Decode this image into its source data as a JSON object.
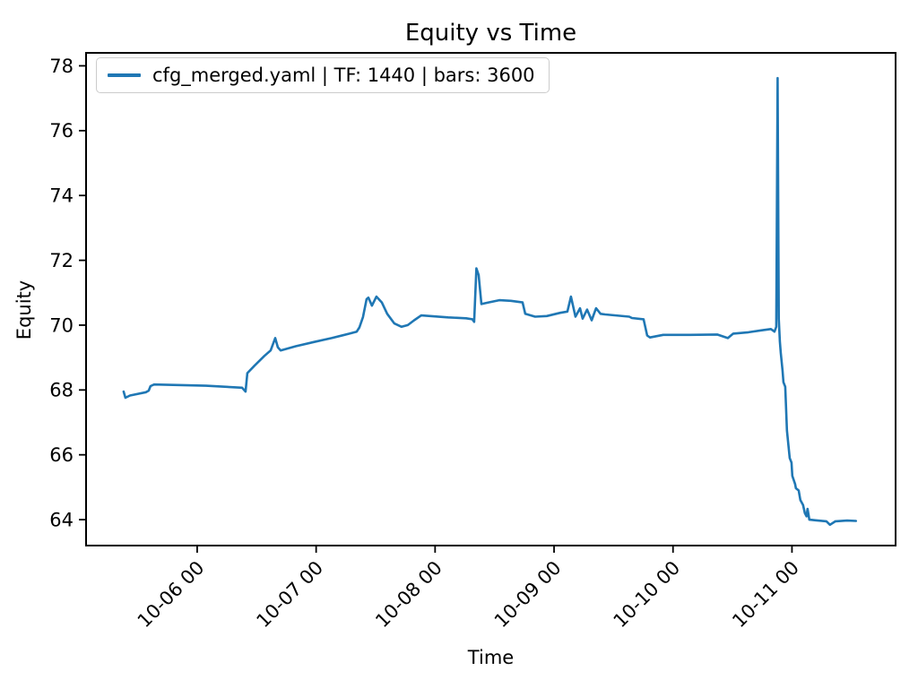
{
  "title": "Equity vs Time",
  "xlabel": "Time",
  "ylabel": "Equity",
  "legend": {
    "label": "cfg_merged.yaml | TF: 1440 | bars: 3600",
    "color": "#1f77b4",
    "position": "upper-left"
  },
  "chart_data": {
    "type": "line",
    "title": "Equity vs Time",
    "xlabel": "Time",
    "ylabel": "Equity",
    "grid": false,
    "line_color": "#1f77b4",
    "xlim": [
      -0.934,
      5.871
    ],
    "ylim": [
      63.2,
      78.4
    ],
    "x_ticks": [
      {
        "pos": 0,
        "label": "10-06 00"
      },
      {
        "pos": 1,
        "label": "10-07 00"
      },
      {
        "pos": 2,
        "label": "10-08 00"
      },
      {
        "pos": 3,
        "label": "10-09 00"
      },
      {
        "pos": 4,
        "label": "10-10 00"
      },
      {
        "pos": 5,
        "label": "10-11 00"
      }
    ],
    "y_ticks": [
      64,
      66,
      68,
      70,
      72,
      74,
      76,
      78
    ],
    "series": [
      {
        "name": "cfg_merged.yaml | TF: 1440 | bars: 3600",
        "color": "#1f77b4",
        "points": [
          [
            -0.618,
            67.95
          ],
          [
            -0.603,
            67.76
          ],
          [
            -0.565,
            67.83
          ],
          [
            -0.43,
            67.93
          ],
          [
            -0.407,
            67.98
          ],
          [
            -0.392,
            68.12
          ],
          [
            -0.362,
            68.17
          ],
          [
            0.075,
            68.13
          ],
          [
            0.377,
            68.07
          ],
          [
            0.407,
            67.95
          ],
          [
            0.422,
            68.52
          ],
          [
            0.482,
            68.75
          ],
          [
            0.565,
            69.05
          ],
          [
            0.618,
            69.22
          ],
          [
            0.656,
            69.6
          ],
          [
            0.678,
            69.32
          ],
          [
            0.701,
            69.22
          ],
          [
            0.829,
            69.35
          ],
          [
            0.98,
            69.48
          ],
          [
            1.13,
            69.6
          ],
          [
            1.281,
            69.74
          ],
          [
            1.341,
            69.8
          ],
          [
            1.364,
            69.93
          ],
          [
            1.394,
            70.25
          ],
          [
            1.424,
            70.8
          ],
          [
            1.439,
            70.85
          ],
          [
            1.469,
            70.6
          ],
          [
            1.507,
            70.88
          ],
          [
            1.552,
            70.7
          ],
          [
            1.597,
            70.35
          ],
          [
            1.658,
            70.05
          ],
          [
            1.718,
            69.95
          ],
          [
            1.771,
            70.0
          ],
          [
            1.824,
            70.15
          ],
          [
            1.884,
            70.3
          ],
          [
            1.959,
            70.28
          ],
          [
            2.11,
            70.24
          ],
          [
            2.261,
            70.21
          ],
          [
            2.313,
            70.18
          ],
          [
            2.328,
            70.1
          ],
          [
            2.347,
            71.75
          ],
          [
            2.366,
            71.55
          ],
          [
            2.389,
            70.65
          ],
          [
            2.449,
            70.7
          ],
          [
            2.539,
            70.77
          ],
          [
            2.637,
            70.75
          ],
          [
            2.735,
            70.7
          ],
          [
            2.758,
            70.35
          ],
          [
            2.841,
            70.26
          ],
          [
            2.939,
            70.28
          ],
          [
            3.052,
            70.38
          ],
          [
            3.112,
            70.42
          ],
          [
            3.142,
            70.88
          ],
          [
            3.18,
            70.26
          ],
          [
            3.218,
            70.52
          ],
          [
            3.24,
            70.2
          ],
          [
            3.278,
            70.48
          ],
          [
            3.316,
            70.15
          ],
          [
            3.353,
            70.52
          ],
          [
            3.391,
            70.35
          ],
          [
            3.429,
            70.33
          ],
          [
            3.632,
            70.26
          ],
          [
            3.655,
            70.22
          ],
          [
            3.753,
            70.18
          ],
          [
            3.783,
            69.68
          ],
          [
            3.806,
            69.62
          ],
          [
            3.918,
            69.7
          ],
          [
            4.145,
            69.7
          ],
          [
            4.371,
            69.71
          ],
          [
            4.461,
            69.6
          ],
          [
            4.506,
            69.74
          ],
          [
            4.634,
            69.78
          ],
          [
            4.747,
            69.84
          ],
          [
            4.823,
            69.88
          ],
          [
            4.853,
            69.8
          ],
          [
            4.868,
            69.95
          ],
          [
            4.879,
            77.62
          ],
          [
            4.889,
            70.2
          ],
          [
            4.898,
            69.5
          ],
          [
            4.906,
            69.15
          ],
          [
            4.921,
            68.6
          ],
          [
            4.928,
            68.24
          ],
          [
            4.943,
            68.1
          ],
          [
            4.951,
            67.4
          ],
          [
            4.958,
            66.75
          ],
          [
            4.973,
            66.2
          ],
          [
            4.981,
            65.9
          ],
          [
            4.996,
            65.76
          ],
          [
            5.003,
            65.35
          ],
          [
            5.026,
            65.1
          ],
          [
            5.033,
            64.97
          ],
          [
            5.056,
            64.9
          ],
          [
            5.071,
            64.6
          ],
          [
            5.093,
            64.45
          ],
          [
            5.108,
            64.2
          ],
          [
            5.123,
            64.1
          ],
          [
            5.131,
            64.33
          ],
          [
            5.146,
            64.0
          ],
          [
            5.199,
            63.98
          ],
          [
            5.289,
            63.95
          ],
          [
            5.319,
            63.84
          ],
          [
            5.365,
            63.95
          ],
          [
            5.463,
            63.97
          ],
          [
            5.538,
            63.96
          ]
        ]
      }
    ]
  }
}
